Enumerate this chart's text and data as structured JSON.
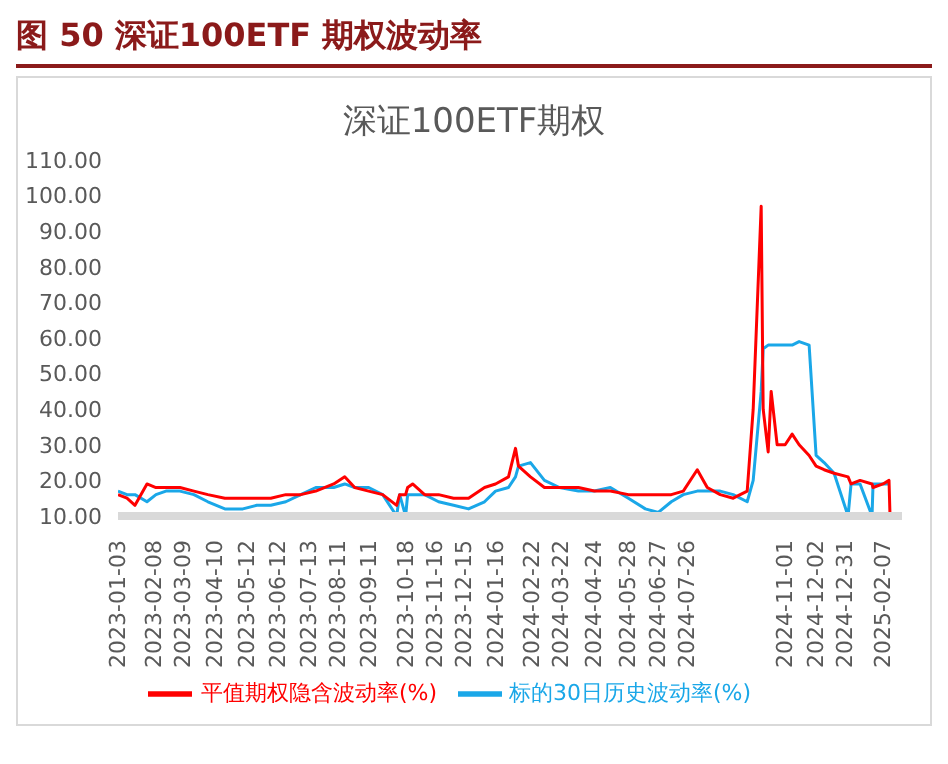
{
  "chart_data": {
    "type": "line",
    "title": "图 50 深证100ETF 期权波动率",
    "subtitle": "深证100ETF期权",
    "x": [
      "2023-01-03",
      "2023-01-12",
      "2023-01-20",
      "2023-02-01",
      "2023-02-10",
      "2023-02-20",
      "2023-03-06",
      "2023-03-20",
      "2023-04-03",
      "2023-04-20",
      "2023-05-08",
      "2023-05-22",
      "2023-06-05",
      "2023-06-20",
      "2023-07-05",
      "2023-07-20",
      "2023-08-07",
      "2023-08-18",
      "2023-08-28",
      "2023-09-11",
      "2023-09-25",
      "2023-10-09",
      "2023-10-12",
      "2023-10-18",
      "2023-10-20",
      "2023-10-25",
      "2023-11-06",
      "2023-11-20",
      "2023-12-05",
      "2023-12-20",
      "2024-01-05",
      "2024-01-16",
      "2024-01-29",
      "2024-02-05",
      "2024-02-08",
      "2024-02-20",
      "2024-03-05",
      "2024-03-20",
      "2024-04-08",
      "2024-04-24",
      "2024-05-10",
      "2024-05-28",
      "2024-06-14",
      "2024-06-27",
      "2024-07-10",
      "2024-07-22",
      "2024-08-05",
      "2024-08-15",
      "2024-08-28",
      "2024-09-10",
      "2024-09-24",
      "2024-09-30",
      "2024-10-08",
      "2024-10-10",
      "2024-10-15",
      "2024-10-18",
      "2024-10-24",
      "2024-11-01",
      "2024-11-08",
      "2024-11-15",
      "2024-11-25",
      "2024-12-02",
      "2024-12-10",
      "2024-12-20",
      "2025-01-03",
      "2025-01-06",
      "2025-01-15",
      "2025-01-27",
      "2025-01-28",
      "2025-02-07",
      "2025-02-13",
      "2025-02-14"
    ],
    "series": [
      {
        "name": "标的30日历史波动率(%)",
        "color": "#1aa7e8",
        "values": [
          17,
          16,
          16,
          14,
          16,
          17,
          17,
          16,
          14,
          12,
          12,
          13,
          13,
          14,
          16,
          18,
          18,
          19,
          18,
          18,
          16,
          10,
          16,
          10,
          16,
          16,
          16,
          14,
          13,
          12,
          14,
          17,
          18,
          21,
          24,
          25,
          20,
          18,
          17,
          17,
          18,
          15,
          12,
          11,
          14,
          16,
          17,
          17,
          17,
          16,
          14,
          20,
          45,
          57,
          58,
          58,
          58,
          58,
          58,
          59,
          58,
          27,
          25,
          22,
          10,
          19,
          19,
          10,
          19,
          19,
          19,
          19
        ]
      },
      {
        "name": "平值期权隐含波动率(%)",
        "color": "#ff0000",
        "values": [
          16,
          15,
          13,
          19,
          18,
          18,
          18,
          17,
          16,
          15,
          15,
          15,
          15,
          16,
          16,
          17,
          19,
          21,
          18,
          17,
          16,
          13,
          16,
          16,
          18,
          19,
          16,
          16,
          15,
          15,
          18,
          19,
          21,
          29,
          24,
          21,
          18,
          18,
          18,
          17,
          17,
          16,
          16,
          16,
          16,
          17,
          23,
          18,
          16,
          15,
          17,
          40,
          97,
          40,
          28,
          45,
          30,
          30,
          33,
          30,
          27,
          24,
          23,
          22,
          21,
          19,
          20,
          19,
          18,
          19,
          20,
          10
        ]
      }
    ],
    "xlim": [
      "2023-01-03",
      "2025-02-26"
    ],
    "xticks": [
      "2023-01-03",
      "2023-02-08",
      "2023-03-09",
      "2023-04-10",
      "2023-05-12",
      "2023-06-12",
      "2023-07-13",
      "2023-08-11",
      "2023-09-11",
      "2023-10-18",
      "2023-11-16",
      "2023-12-15",
      "2024-01-16",
      "2024-02-22",
      "2024-03-22",
      "2024-04-24",
      "2024-05-28",
      "2024-06-27",
      "2024-07-26",
      "2024-11-01",
      "2024-12-02",
      "2024-12-31",
      "2025-02-07"
    ],
    "ylim": [
      10,
      110
    ],
    "yticks": [
      {
        "value": 10,
        "label": "10.00"
      },
      {
        "value": 20,
        "label": "20.00"
      },
      {
        "value": 30,
        "label": "30.00"
      },
      {
        "value": 40,
        "label": "40.00"
      },
      {
        "value": 50,
        "label": "50.00"
      },
      {
        "value": 60,
        "label": "60.00"
      },
      {
        "value": 70,
        "label": "70.00"
      },
      {
        "value": 80,
        "label": "80.00"
      },
      {
        "value": 90,
        "label": "90.00"
      },
      {
        "value": 100,
        "label": "100.00"
      },
      {
        "value": 110,
        "label": "110.00"
      }
    ],
    "grid": false,
    "legend": "bottom",
    "marker": "none",
    "line_style": "solid"
  }
}
